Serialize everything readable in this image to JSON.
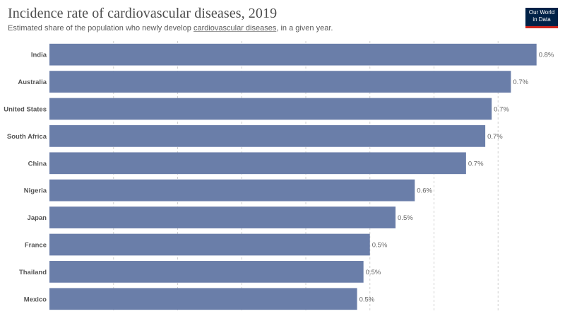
{
  "header": {
    "title": "Incidence rate of cardiovascular diseases, 2019",
    "subtitle_before": "Estimated share of the population who newly develop ",
    "subtitle_link": "cardiovascular diseases",
    "subtitle_after": ", in a given year."
  },
  "logo": {
    "line1": "Our World",
    "line2": "in Data"
  },
  "colors": {
    "bar": "#6a7ea9",
    "grid": "#d0d0d0",
    "logo_bg": "#002147",
    "logo_accent": "#ce261e"
  },
  "chart_data": {
    "type": "bar",
    "orientation": "horizontal",
    "title": "Incidence rate of cardiovascular diseases, 2019",
    "categories": [
      "India",
      "Australia",
      "United States",
      "South Africa",
      "China",
      "Nigeria",
      "Japan",
      "France",
      "Thailand",
      "Mexico"
    ],
    "values": [
      0.76,
      0.72,
      0.69,
      0.68,
      0.65,
      0.57,
      0.54,
      0.5,
      0.49,
      0.48
    ],
    "value_labels": [
      "0.8%",
      "0.7%",
      "0.7%",
      "0.7%",
      "0.7%",
      "0.6%",
      "0.5%",
      "0.5%",
      "0.5%",
      "0.5%"
    ],
    "unit": "%",
    "xlim": [
      0,
      0.8
    ],
    "grid": true
  }
}
